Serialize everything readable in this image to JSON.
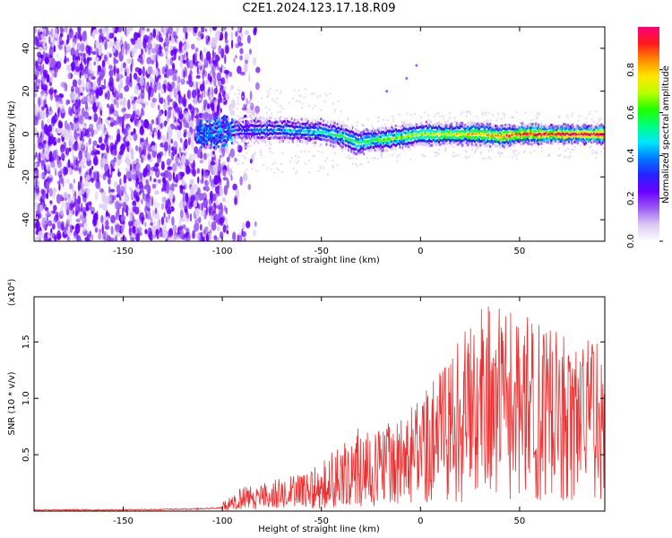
{
  "title": "C2E1.2024.123.17.18.R09",
  "colors": {
    "snr_line": "#f03030",
    "colormap": [
      "#ffffff",
      "#dccaf4",
      "#9b5cf0",
      "#6a00ff",
      "#2a1fff",
      "#0077ff",
      "#00e5ff",
      "#00ff80",
      "#20ff00",
      "#b8ff00",
      "#ffe600",
      "#ff8c00",
      "#ff1a1a",
      "#ff0077"
    ]
  },
  "chart_data": [
    {
      "type": "heatmap",
      "title": "C2E1.2024.123.17.18.R09",
      "xlabel": "Height of straight line (km)",
      "ylabel": "Frequency (Hz)",
      "xlim": [
        -195,
        93
      ],
      "ylim": [
        -50,
        50
      ],
      "xticks": [
        -150,
        -100,
        -50,
        0,
        50
      ],
      "yticks": [
        -40,
        -20,
        0,
        20,
        40
      ],
      "colorbar": {
        "label": "Normalized spectral amplitude",
        "range": [
          0.0,
          1.0
        ],
        "ticks": [
          "0.0",
          "0.2",
          "0.4",
          "0.6",
          "0.8"
        ]
      },
      "regions": [
        {
          "name": "noise",
          "x_range": [
            -195,
            -97
          ],
          "freq_range": [
            -50,
            50
          ],
          "amplitude": [
            0.05,
            0.3
          ]
        },
        {
          "name": "signal",
          "x_range": [
            -113,
            93
          ],
          "center_freq_hz": 0,
          "amplitude_peak": 1.0
        }
      ],
      "signal_center_freq": {
        "x": [
          -113,
          -90,
          -70,
          -50,
          -40,
          -32,
          -25,
          -15,
          0,
          20,
          30,
          40,
          50,
          60,
          70,
          93
        ],
        "freq": [
          0,
          2,
          2,
          1,
          -1,
          -4,
          -3,
          -2,
          0,
          0,
          0,
          -1,
          0,
          0,
          0,
          0
        ]
      }
    },
    {
      "type": "line",
      "xlabel": "Height of straight line (km)",
      "ylabel": "SNR (10 * v/v)",
      "y_multiplier": "(x10⁴)",
      "xlim": [
        -195,
        93
      ],
      "ylim": [
        0,
        1.9
      ],
      "xticks": [
        -150,
        -100,
        -50,
        0,
        50
      ],
      "yticks": [
        0.5,
        1.0,
        1.5
      ],
      "series": [
        {
          "x": [
            -195,
            -150,
            -110,
            -100,
            -95,
            -90,
            -80,
            -70,
            -60,
            -50,
            -40,
            -30,
            -20,
            -10,
            0,
            10,
            20,
            30,
            40,
            50,
            60,
            70,
            80,
            93
          ],
          "mean": [
            0.01,
            0.01,
            0.02,
            0.03,
            0.06,
            0.1,
            0.13,
            0.15,
            0.17,
            0.2,
            0.25,
            0.3,
            0.37,
            0.45,
            0.52,
            0.62,
            0.78,
            0.92,
            1.0,
            0.98,
            0.95,
            0.95,
            0.96,
            1.0
          ],
          "peak": [
            0.02,
            0.02,
            0.06,
            0.08,
            0.14,
            0.22,
            0.26,
            0.3,
            0.33,
            0.45,
            0.62,
            0.8,
            0.72,
            0.88,
            1.0,
            1.25,
            1.55,
            1.9,
            1.8,
            1.75,
            1.7,
            1.6,
            1.5,
            1.55
          ]
        }
      ]
    }
  ]
}
